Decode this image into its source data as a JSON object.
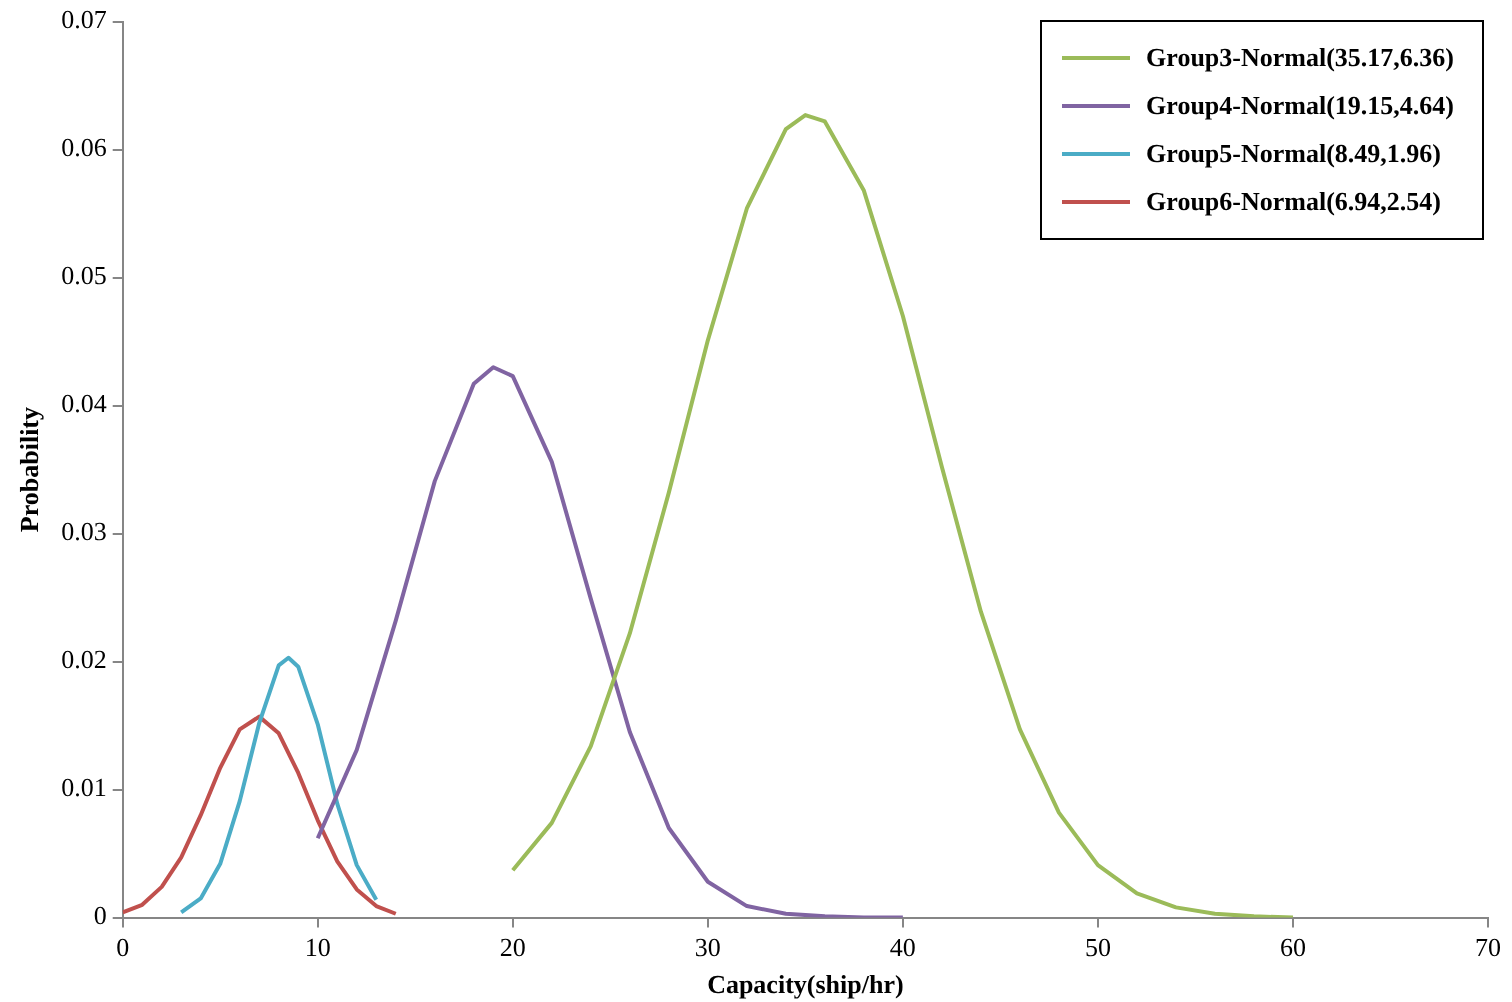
{
  "chart_data": {
    "type": "line",
    "xlabel": "Capacity(ship/hr)",
    "ylabel": "Probability",
    "xlim": [
      0,
      70
    ],
    "xticks": [
      0,
      10,
      20,
      30,
      40,
      50,
      60,
      70
    ],
    "ylim": [
      0,
      0.07
    ],
    "yticks": [
      0,
      0.01,
      0.02,
      0.03,
      0.04,
      0.05,
      0.06,
      0.07
    ],
    "grid": false,
    "legend": "top right",
    "marker": "none",
    "line_style": "solid",
    "series": [
      {
        "name": "Group3-Normal(35.17,6.36)",
        "color": "#9bbb59",
        "x": [
          20,
          22,
          24,
          26,
          28,
          30,
          32,
          34,
          35,
          36,
          38,
          40,
          42,
          44,
          46,
          48,
          50,
          52,
          54,
          56,
          58,
          60
        ],
        "values": [
          0.0037,
          0.0074,
          0.0134,
          0.0222,
          0.0332,
          0.0451,
          0.0554,
          0.0616,
          0.0627,
          0.0622,
          0.0568,
          0.047,
          0.0352,
          0.0239,
          0.0147,
          0.0082,
          0.0041,
          0.0019,
          0.0008,
          0.0003,
          0.0001,
          0
        ]
      },
      {
        "name": "Group4-Normal(19.15,4.64)",
        "color": "#8064a2",
        "x": [
          10,
          12,
          14,
          16,
          18,
          19,
          20,
          22,
          24,
          26,
          28,
          30,
          32,
          34,
          36,
          38,
          40
        ],
        "values": [
          0.0062,
          0.0131,
          0.0232,
          0.0341,
          0.0417,
          0.043,
          0.0423,
          0.0356,
          0.0249,
          0.0145,
          0.007,
          0.0028,
          0.0009,
          0.0003,
          0.0001,
          0,
          0
        ]
      },
      {
        "name": "Group5-Normal(8.49,1.96)",
        "color": "#4bacc6",
        "x": [
          3,
          4,
          5,
          6,
          7,
          8,
          8.5,
          9,
          10,
          11,
          12,
          13
        ],
        "values": [
          0.0004,
          0.0015,
          0.0042,
          0.0091,
          0.0152,
          0.0197,
          0.0203,
          0.0196,
          0.0151,
          0.0089,
          0.0041,
          0.0014
        ]
      },
      {
        "name": "Group6-Normal(6.94,2.54)",
        "color": "#c0504d",
        "x": [
          0,
          1,
          2,
          3,
          4,
          5,
          6,
          7,
          8,
          9,
          10,
          11,
          12,
          13,
          14
        ],
        "values": [
          0.0004,
          0.001,
          0.0024,
          0.0047,
          0.008,
          0.0117,
          0.0147,
          0.0157,
          0.0144,
          0.0113,
          0.0076,
          0.0044,
          0.0022,
          0.0009,
          0.0003
        ]
      }
    ]
  }
}
